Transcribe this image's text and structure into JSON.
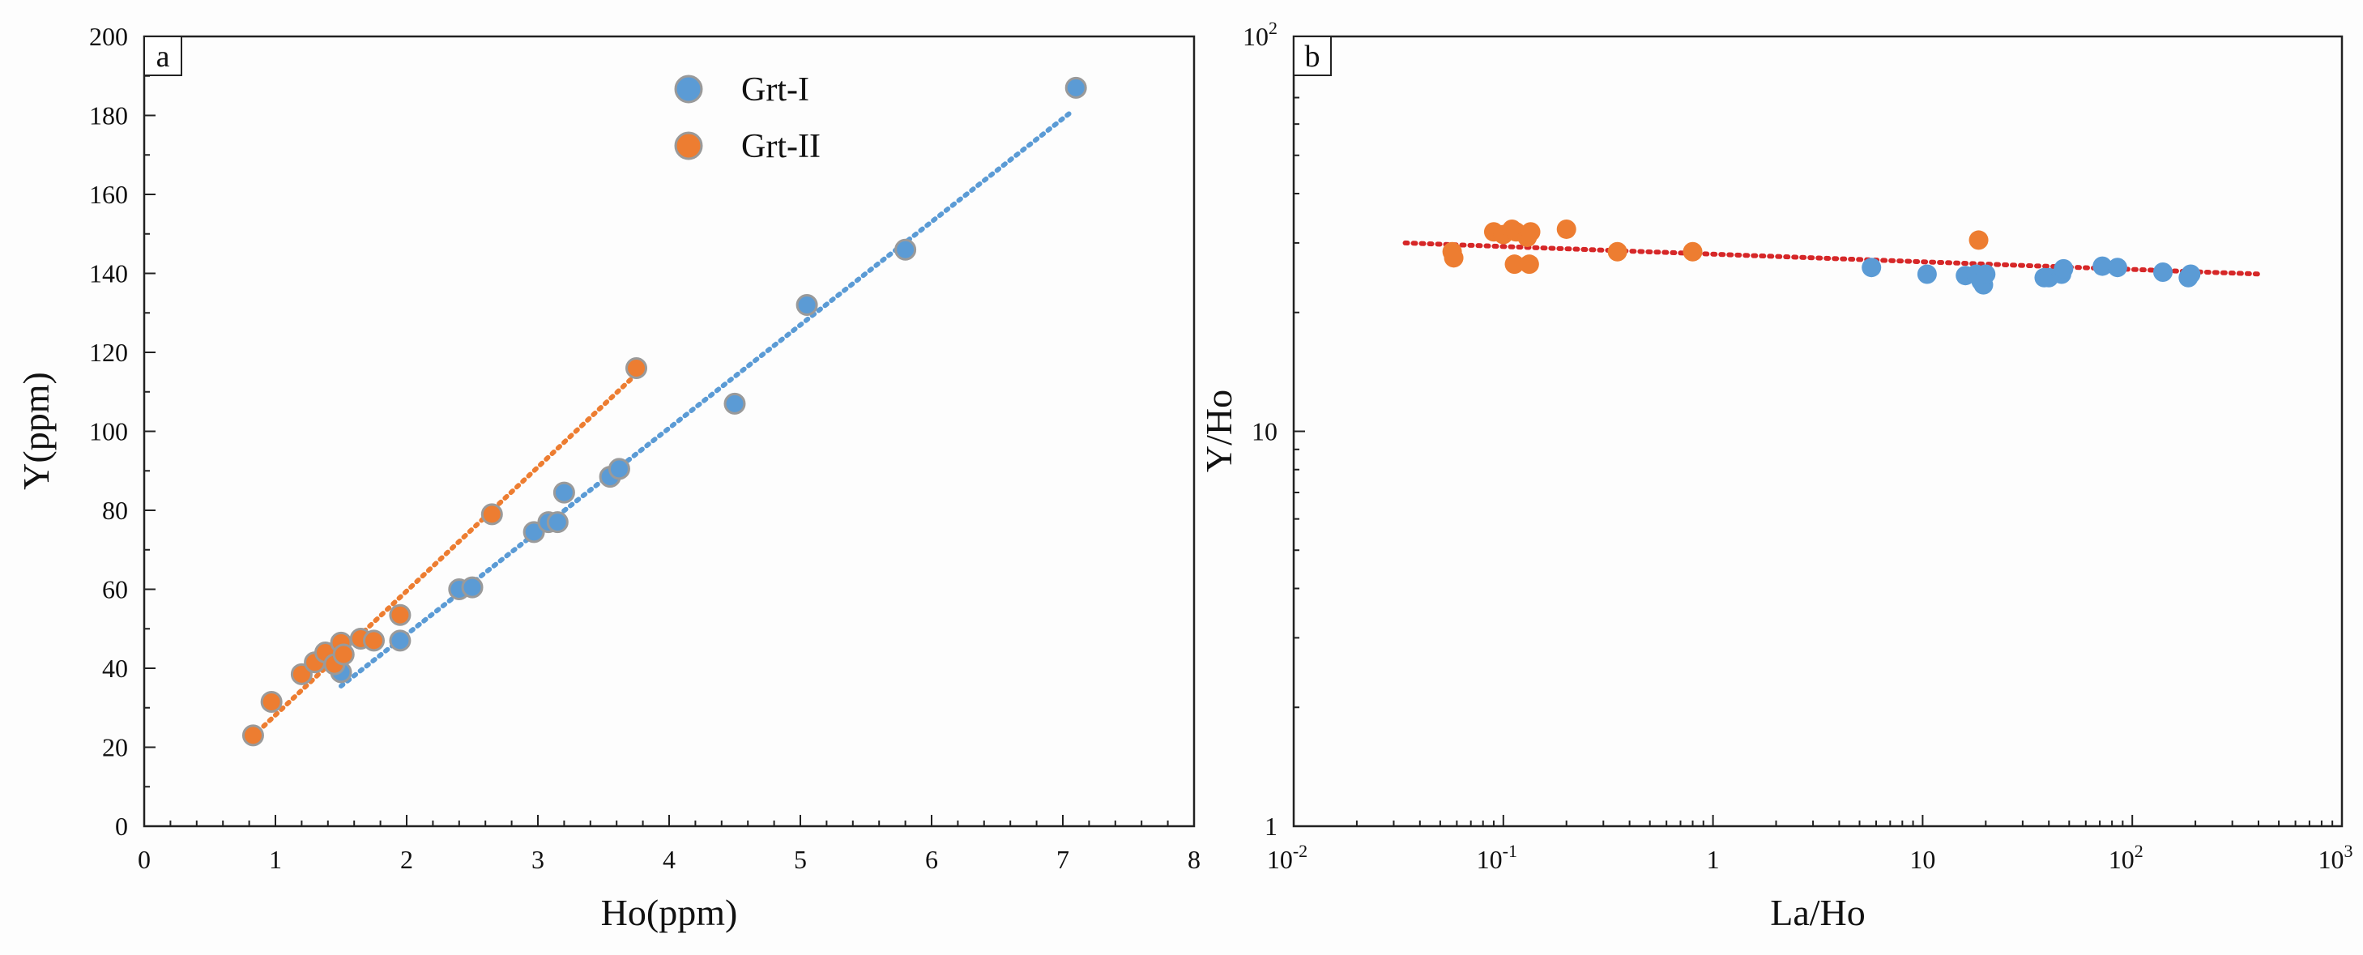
{
  "colors": {
    "grt1": "#5b9bd5",
    "grt2": "#ed7d31",
    "trend_b": "#d62728",
    "edge": "#9a9a9a"
  },
  "chart_data": [
    {
      "type": "scatter",
      "panel": "a",
      "xlabel": "Ho(ppm)",
      "ylabel": "Y(ppm)",
      "xlim": [
        0,
        8
      ],
      "ylim": [
        0,
        200
      ],
      "xticks": [
        "0",
        "1",
        "2",
        "3",
        "4",
        "5",
        "6",
        "7",
        "8"
      ],
      "yticks": [
        "0",
        "20",
        "40",
        "60",
        "80",
        "100",
        "120",
        "140",
        "160",
        "180",
        "200"
      ],
      "legend": [
        "Grt-I",
        "Grt-II"
      ],
      "legend_position": "top-center",
      "series": [
        {
          "name": "Grt-I",
          "x": [
            1.5,
            1.95,
            2.4,
            2.5,
            2.97,
            3.08,
            3.15,
            3.2,
            3.55,
            3.62,
            4.5,
            5.05,
            5.8,
            7.1
          ],
          "y": [
            39,
            47,
            60,
            60.5,
            74.5,
            77,
            77,
            84.5,
            88.5,
            90.5,
            107,
            132,
            146,
            187
          ]
        },
        {
          "name": "Grt-II",
          "x": [
            0.83,
            0.97,
            1.2,
            1.3,
            1.38,
            1.45,
            1.5,
            1.52,
            1.65,
            1.75,
            1.95,
            2.65,
            3.75
          ],
          "y": [
            23,
            31.5,
            38.5,
            41.5,
            44,
            41,
            46.5,
            43.5,
            47.5,
            47,
            53.5,
            79,
            116
          ]
        }
      ],
      "trendlines": [
        {
          "name": "Grt-I trend",
          "x": [
            1.5,
            7.05
          ],
          "y": [
            35.5,
            180.5
          ]
        },
        {
          "name": "Grt-II trend",
          "x": [
            0.82,
            3.75
          ],
          "y": [
            22.5,
            114.5
          ]
        }
      ]
    },
    {
      "type": "scatter",
      "panel": "b",
      "scale": "log-log",
      "xlabel": "La/Ho",
      "ylabel": "Y/Ho",
      "xlim": [
        0.01,
        1000
      ],
      "ylim": [
        1,
        100
      ],
      "xticks": [
        {
          "base": "10",
          "exp": "-2"
        },
        {
          "base": "10",
          "exp": "-1"
        },
        {
          "base": "1",
          "exp": ""
        },
        {
          "base": "10",
          "exp": ""
        },
        {
          "base": "10",
          "exp": "2"
        },
        {
          "base": "10",
          "exp": "3"
        }
      ],
      "yticks": [
        {
          "base": "1",
          "exp": ""
        },
        {
          "base": "10",
          "exp": ""
        },
        {
          "base": "10",
          "exp": "2"
        }
      ],
      "series": [
        {
          "name": "Grt-I",
          "x": [
            5.7,
            10.5,
            16,
            18,
            19,
            19.5,
            20,
            38,
            40,
            46,
            47,
            72,
            85,
            140,
            185,
            190
          ],
          "y": [
            26,
            25,
            24.8,
            25,
            24,
            23.5,
            25,
            24.5,
            24.5,
            25,
            25.8,
            26.2,
            26,
            25.3,
            24.5,
            25
          ]
        },
        {
          "name": "Grt-II",
          "x": [
            0.057,
            0.058,
            0.09,
            0.1,
            0.11,
            0.113,
            0.115,
            0.13,
            0.133,
            0.135,
            0.2,
            0.35,
            0.8,
            18.5
          ],
          "y": [
            28.5,
            27.5,
            32,
            31.5,
            32.5,
            26.5,
            32,
            31,
            26.5,
            32,
            32.5,
            28.5,
            28.5,
            30.5
          ]
        }
      ],
      "trendlines": [
        {
          "name": "overall trend",
          "x": [
            0.034,
            420
          ],
          "y": [
            30,
            25
          ]
        }
      ]
    }
  ]
}
